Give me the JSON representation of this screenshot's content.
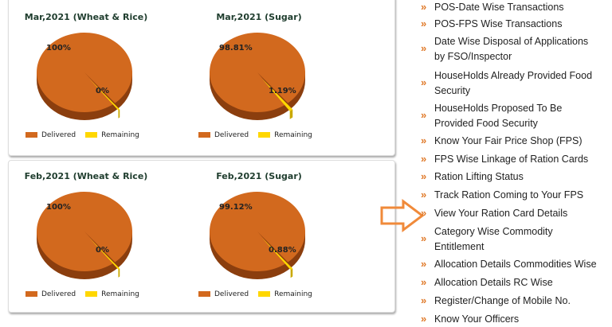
{
  "chart_data": [
    {
      "type": "pie",
      "title": "Mar,2021 (Wheat & Rice)",
      "categories": [
        "Delivered",
        "Remaining"
      ],
      "values": [
        100,
        0
      ],
      "labels": [
        "100%",
        "0%"
      ]
    },
    {
      "type": "pie",
      "title": "Mar,2021 (Sugar)",
      "categories": [
        "Delivered",
        "Remaining"
      ],
      "values": [
        98.81,
        1.19
      ],
      "labels": [
        "98.81%",
        "1.19%"
      ]
    },
    {
      "type": "pie",
      "title": "Feb,2021 (Wheat & Rice)",
      "categories": [
        "Delivered",
        "Remaining"
      ],
      "values": [
        100,
        0
      ],
      "labels": [
        "100%",
        "0%"
      ]
    },
    {
      "type": "pie",
      "title": "Feb,2021 (Sugar)",
      "categories": [
        "Delivered",
        "Remaining"
      ],
      "values": [
        99.12,
        0.88
      ],
      "labels": [
        "99.12%",
        "0.88%"
      ]
    }
  ],
  "colors": {
    "delivered": "#d2691e",
    "delivered_dark": "#8b3e0e",
    "remaining": "#ffd700",
    "bullet": "#e07a2a",
    "arrow": "#f08a3a"
  },
  "links": [
    [
      "POS-Date Wise Transactions"
    ],
    [
      "POS-FPS Wise Transactions"
    ],
    [
      "Date Wise Disposal of Applications",
      "by FSO/Inspector"
    ],
    [
      "HouseHolds Already Provided Food",
      "Security"
    ],
    [
      "HouseHolds Proposed To Be",
      "Provided Food Security"
    ],
    [
      "Know Your Fair Price Shop (FPS)"
    ],
    [
      "FPS Wise Linkage of Ration Cards"
    ],
    [
      "Ration Lifting Status"
    ],
    [
      "Track Ration Coming to Your FPS"
    ],
    [
      "View Your Ration Card Details"
    ],
    [
      "Category Wise Commodity",
      "Entitlement"
    ],
    [
      "Allocation Details Commodities Wise"
    ],
    [
      "Allocation Details RC Wise"
    ],
    [
      "Register/Change of Mobile No."
    ],
    [
      "Know Your Officers"
    ]
  ],
  "bullet": "»"
}
